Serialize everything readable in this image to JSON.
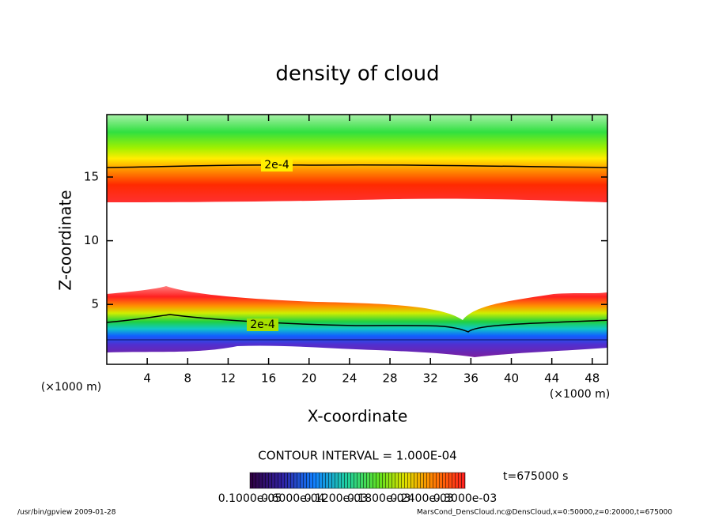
{
  "chart_data": {
    "type": "contour",
    "title": "density of cloud",
    "x_label": "X-coordinate",
    "y_label": "Z-coordinate",
    "x_unit": "(×1000 m)",
    "y_unit": "(×1000 m)",
    "xlim": [
      0,
      49.5
    ],
    "ylim": [
      0.3,
      19.9
    ],
    "xticks": [
      4,
      8,
      12,
      16,
      20,
      24,
      28,
      32,
      36,
      40,
      44,
      48
    ],
    "yticks": [
      5,
      10,
      15
    ],
    "contour_label": "2e-4",
    "contour_interval": "CONTOUR INTERVAL = 1.000E-04",
    "colorbar_labels": [
      "0.1000e-05",
      "0.6000e-04",
      "0.1200e-03",
      "0.1800e-03",
      "0.2400e-03",
      "0.3000e-03"
    ],
    "time_label": "t=675000 s",
    "footer_left": "/usr/bin/gpview   2009-01-28",
    "footer_right": "MarsCond_DensCloud.nc@DensCloud,x=0:50000,z=0:20000,t=675000"
  }
}
